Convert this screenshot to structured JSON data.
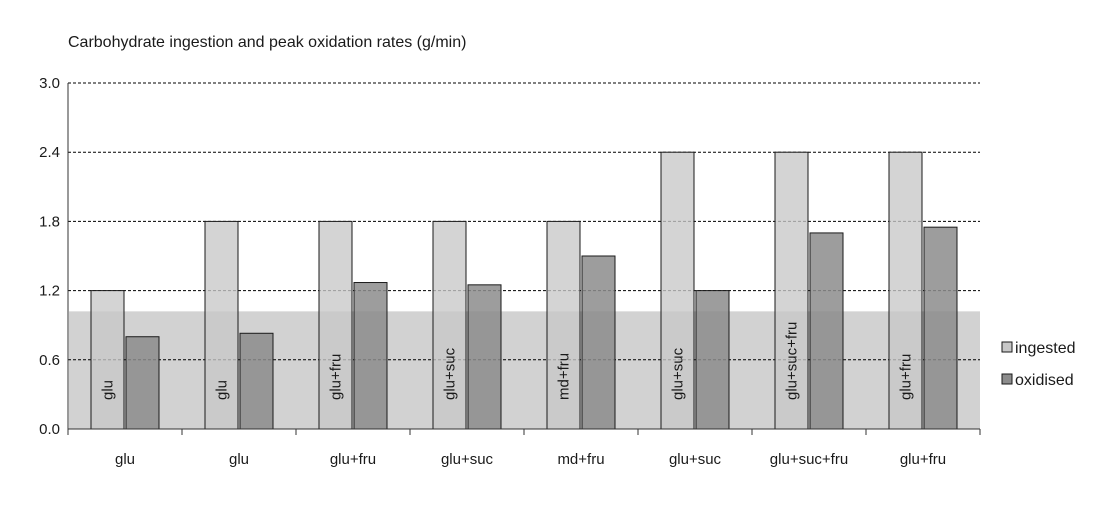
{
  "chart_data": {
    "type": "bar",
    "title": "Carbohydrate ingestion and peak oxidation rates (g/min)",
    "xlabel": "",
    "ylabel": "",
    "ylim": [
      0,
      3.0
    ],
    "yticks": [
      "0.0",
      "0.6",
      "1.2",
      "1.8",
      "2.4",
      "3.0"
    ],
    "grid": true,
    "legend_position": "right",
    "shaded_band": {
      "from": 0,
      "to": 1.02,
      "color": "#d2d2d2"
    },
    "categories": [
      "glu",
      "glu",
      "glu+fru",
      "glu+suc",
      "md+fru",
      "glu+suc",
      "glu+suc+fru",
      "glu+fru"
    ],
    "bar_labels": [
      "glu",
      "glu",
      "glu+fru",
      "glu+suc",
      "md+fru",
      "glu+suc",
      "glu+suc+fru",
      "glu+fru"
    ],
    "series": [
      {
        "name": "ingested",
        "color": "#c8c8c8",
        "values": [
          1.2,
          1.8,
          1.8,
          1.8,
          1.8,
          2.4,
          2.4,
          2.4
        ]
      },
      {
        "name": "oxidised",
        "color": "#8c8c8c",
        "values": [
          0.8,
          0.83,
          1.27,
          1.25,
          1.5,
          1.2,
          1.7,
          1.75
        ]
      }
    ]
  }
}
